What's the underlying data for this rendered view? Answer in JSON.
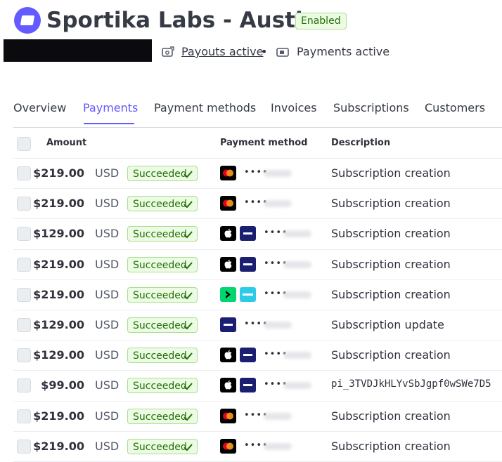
{
  "header": {
    "title": "Sportika Labs - Austin",
    "badge": "Enabled",
    "payouts": "Payouts active",
    "separator": "•",
    "payments": "Payments active"
  },
  "tabs": [
    "Overview",
    "Payments",
    "Payment methods",
    "Invoices",
    "Subscriptions",
    "Customers"
  ],
  "table": {
    "columns": [
      "Amount",
      "Payment method",
      "Description"
    ],
    "rows": [
      {
        "amount": "$219.00",
        "currency": "USD",
        "status": "Succeeded",
        "card_mask": "••••",
        "description": "Subscription creation"
      },
      {
        "amount": "$219.00",
        "currency": "USD",
        "status": "Succeeded",
        "card_mask": "••••",
        "description": "Subscription creation"
      },
      {
        "amount": "$129.00",
        "currency": "USD",
        "status": "Succeeded",
        "card_mask": "••••",
        "description": "Subscription creation"
      },
      {
        "amount": "$219.00",
        "currency": "USD",
        "status": "Succeeded",
        "card_mask": "••••",
        "description": "Subscription creation"
      },
      {
        "amount": "$219.00",
        "currency": "USD",
        "status": "Succeeded",
        "card_mask": "••••",
        "description": "Subscription creation"
      },
      {
        "amount": "$129.00",
        "currency": "USD",
        "status": "Succeeded",
        "card_mask": "••••",
        "description": "Subscription update"
      },
      {
        "amount": "$129.00",
        "currency": "USD",
        "status": "Succeeded",
        "card_mask": "••••",
        "description": "Subscription creation"
      },
      {
        "amount": "$99.00",
        "currency": "USD",
        "status": "Succeeded",
        "card_mask": "••••",
        "description": "pi_3TVDJkHLYvSbJgpf0wSWe7D5"
      },
      {
        "amount": "$219.00",
        "currency": "USD",
        "status": "Succeeded",
        "card_mask": "••••",
        "description": "Subscription creation"
      },
      {
        "amount": "$219.00",
        "currency": "USD",
        "status": "Succeeded",
        "card_mask": "••••",
        "description": "Subscription creation"
      }
    ]
  }
}
